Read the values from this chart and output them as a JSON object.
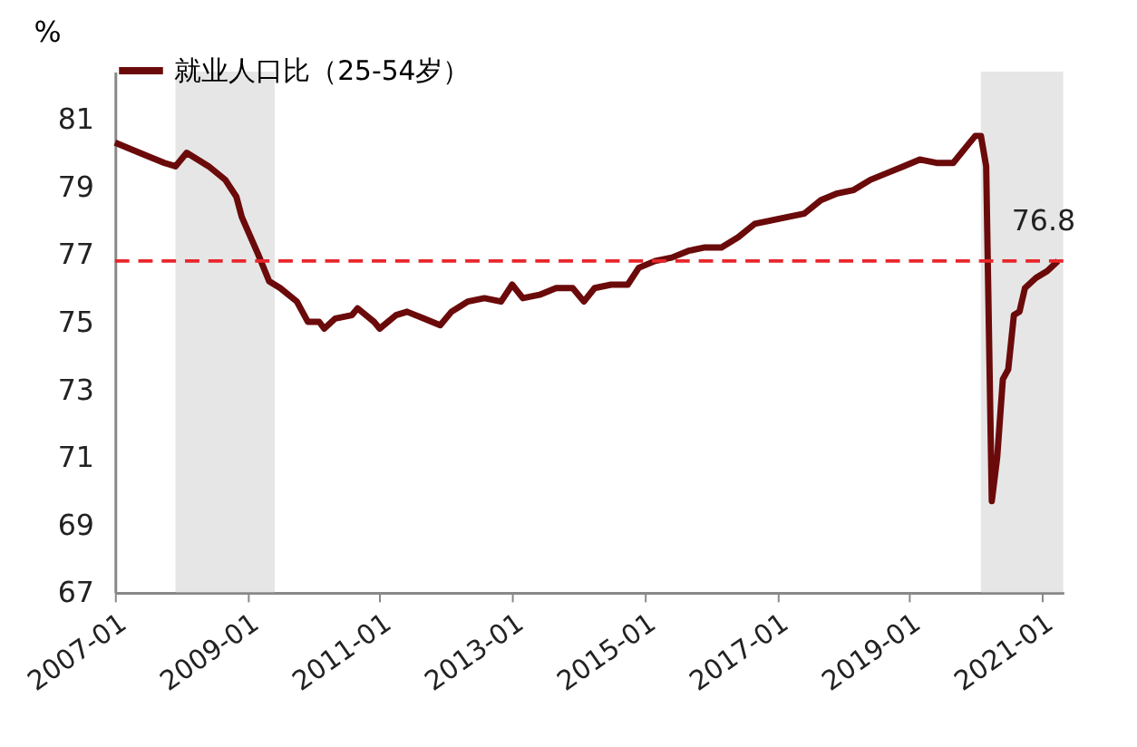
{
  "chart_data": {
    "type": "line",
    "ylabel": "%",
    "legend": "top",
    "series": [
      {
        "name": "就业人口比（25-54岁）",
        "color": "#6b0a0a",
        "line_style": "solid",
        "marker": "none",
        "x": [
          "2007-01",
          "2007-04",
          "2007-07",
          "2007-10",
          "2007-12",
          "2008-02",
          "2008-06",
          "2008-09",
          "2008-11",
          "2008-12",
          "2009-03",
          "2009-05",
          "2009-07",
          "2009-10",
          "2009-12",
          "2010-02",
          "2010-03",
          "2010-05",
          "2010-08",
          "2010-09",
          "2010-12",
          "2011-01",
          "2011-04",
          "2011-06",
          "2011-09",
          "2011-12",
          "2012-02",
          "2012-05",
          "2012-08",
          "2012-11",
          "2013-01",
          "2013-03",
          "2013-06",
          "2013-09",
          "2013-12",
          "2014-02",
          "2014-04",
          "2014-07",
          "2014-10",
          "2014-12",
          "2015-03",
          "2015-06",
          "2015-09",
          "2015-12",
          "2016-03",
          "2016-06",
          "2016-09",
          "2016-12",
          "2017-03",
          "2017-06",
          "2017-09",
          "2017-12",
          "2018-03",
          "2018-06",
          "2018-09",
          "2018-12",
          "2019-03",
          "2019-06",
          "2019-09",
          "2019-12",
          "2020-01",
          "2020-02",
          "2020-03",
          "2020-04",
          "2020-05",
          "2020-06",
          "2020-07",
          "2020-08",
          "2020-09",
          "2020-10",
          "2020-12",
          "2021-02",
          "2021-04"
        ],
        "values": [
          80.3,
          80.1,
          79.9,
          79.7,
          79.6,
          80.0,
          79.6,
          79.2,
          78.7,
          78.1,
          77.0,
          76.2,
          76.0,
          75.6,
          75.0,
          75.0,
          74.8,
          75.1,
          75.2,
          75.4,
          75.0,
          74.8,
          75.2,
          75.3,
          75.1,
          74.9,
          75.3,
          75.6,
          75.7,
          75.6,
          76.1,
          75.7,
          75.8,
          76.0,
          76.0,
          75.6,
          76.0,
          76.1,
          76.1,
          76.6,
          76.8,
          76.9,
          77.1,
          77.2,
          77.2,
          77.5,
          77.9,
          78.0,
          78.1,
          78.2,
          78.6,
          78.8,
          78.9,
          79.2,
          79.4,
          79.6,
          79.8,
          79.7,
          79.7,
          80.3,
          80.5,
          80.5,
          79.6,
          69.7,
          71.0,
          73.3,
          73.6,
          75.2,
          75.3,
          76.0,
          76.3,
          76.5,
          76.8
        ]
      }
    ],
    "xlim": [
      "2007-01",
      "2021-05"
    ],
    "xticks": [
      "2007-01",
      "2009-01",
      "2011-01",
      "2013-01",
      "2015-01",
      "2017-01",
      "2019-01",
      "2021-01"
    ],
    "ylim": [
      67,
      82.4
    ],
    "yticks": [
      67,
      69,
      71,
      73,
      75,
      77,
      79,
      81
    ],
    "grid": false,
    "ref_lines": [
      {
        "axis": "y",
        "value": 76.8,
        "color": "#e8262b",
        "line_style": "dashed"
      }
    ],
    "bands": [
      {
        "axis": "x",
        "from": "2007-12",
        "to": "2009-06",
        "color": "#e6e6e6"
      },
      {
        "axis": "x",
        "from": "2020-02",
        "to": "2021-05",
        "color": "#e6e6e6"
      }
    ],
    "annotations": [
      {
        "text": "76.8",
        "x": "2021-04",
        "y": 76.8
      }
    ]
  }
}
